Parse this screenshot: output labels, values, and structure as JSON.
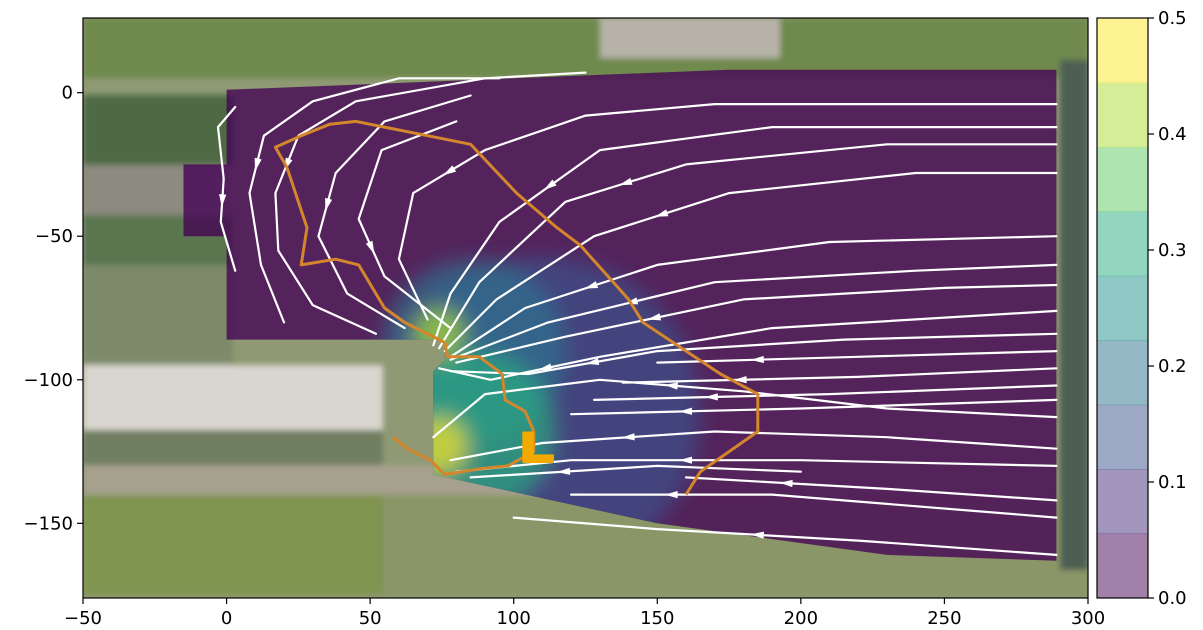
{
  "chart_data": {
    "type": "heatmap",
    "title": "",
    "xlabel": "",
    "ylabel": "",
    "xlim": [
      -50,
      300
    ],
    "ylim": [
      -176,
      26
    ],
    "x_ticks": [
      -50,
      0,
      50,
      100,
      150,
      200,
      250,
      300
    ],
    "y_ticks": [
      0,
      -50,
      -100,
      -150
    ],
    "colorbar": {
      "range": [
        0.0,
        0.5
      ],
      "ticks": [
        0.0,
        0.1,
        0.2,
        0.3,
        0.4,
        0.5
      ],
      "levels": 9,
      "colors": [
        "#440154",
        "#472d7b",
        "#3b528b",
        "#2c728e",
        "#21918c",
        "#28ae80",
        "#5ec962",
        "#addc30",
        "#fde725"
      ],
      "alpha": 0.5
    },
    "background": "aerial photograph of ship lock and water channel",
    "domain_polygon": [
      [
        0,
        1
      ],
      [
        175,
        8
      ],
      [
        289,
        8
      ],
      [
        289,
        -163
      ],
      [
        230,
        -161
      ],
      [
        150,
        -150
      ],
      [
        95,
        -138
      ],
      [
        72,
        -133
      ],
      [
        72,
        -97
      ],
      [
        76,
        -93
      ],
      [
        76,
        -86
      ],
      [
        0,
        -86
      ],
      [
        0,
        -50
      ],
      [
        -15,
        -50
      ],
      [
        -15,
        -25
      ],
      [
        0,
        -25
      ]
    ],
    "contour_field": {
      "description": "velocity magnitude (m/s) contours, elevated near lock-exit openings",
      "hotspots": [
        {
          "x": 74,
          "y": -123,
          "value": 0.45,
          "spread": 10
        },
        {
          "x": 74,
          "y": -84,
          "value": 0.42,
          "spread": 9
        },
        {
          "x": 86,
          "y": -118,
          "value": 0.28,
          "spread": 28
        },
        {
          "x": 86,
          "y": -90,
          "value": 0.22,
          "spread": 32
        },
        {
          "x": 110,
          "y": -112,
          "value": 0.15,
          "spread": 55
        }
      ]
    },
    "streamlines": [
      [
        [
          3,
          -62
        ],
        [
          -2,
          -45
        ],
        [
          -1,
          -30
        ],
        [
          -3,
          -12
        ],
        [
          3,
          -5
        ]
      ],
      [
        [
          20,
          -80
        ],
        [
          12,
          -60
        ],
        [
          8,
          -35
        ],
        [
          13,
          -15
        ],
        [
          30,
          -3
        ],
        [
          60,
          5
        ],
        [
          95,
          5
        ]
      ],
      [
        [
          52,
          -84
        ],
        [
          30,
          -74
        ],
        [
          18,
          -55
        ],
        [
          17,
          -35
        ],
        [
          25,
          -15
        ],
        [
          45,
          -3
        ],
        [
          90,
          5
        ],
        [
          125,
          7
        ]
      ],
      [
        [
          62,
          -82
        ],
        [
          42,
          -70
        ],
        [
          32,
          -50
        ],
        [
          38,
          -28
        ],
        [
          55,
          -10
        ],
        [
          85,
          -1
        ]
      ],
      [
        [
          78,
          -82
        ],
        [
          55,
          -64
        ],
        [
          46,
          -44
        ],
        [
          54,
          -20
        ],
        [
          80,
          -10
        ]
      ],
      [
        [
          70,
          -79
        ],
        [
          60,
          -58
        ],
        [
          65,
          -35
        ],
        [
          90,
          -20
        ],
        [
          125,
          -8
        ],
        [
          170,
          -4
        ],
        [
          289,
          -4
        ]
      ],
      [
        [
          72,
          -88
        ],
        [
          78,
          -70
        ],
        [
          95,
          -45
        ],
        [
          130,
          -20
        ],
        [
          190,
          -12
        ],
        [
          289,
          -12
        ]
      ],
      [
        [
          74,
          -89
        ],
        [
          88,
          -66
        ],
        [
          118,
          -38
        ],
        [
          160,
          -25
        ],
        [
          230,
          -18
        ],
        [
          289,
          -18
        ]
      ],
      [
        [
          76,
          -90
        ],
        [
          94,
          -72
        ],
        [
          128,
          -50
        ],
        [
          175,
          -35
        ],
        [
          240,
          -28
        ],
        [
          289,
          -28
        ]
      ],
      [
        [
          78,
          -92
        ],
        [
          104,
          -75
        ],
        [
          150,
          -60
        ],
        [
          210,
          -52
        ],
        [
          289,
          -50
        ]
      ],
      [
        [
          78,
          -93
        ],
        [
          112,
          -80
        ],
        [
          170,
          -66
        ],
        [
          240,
          -62
        ],
        [
          289,
          -60
        ]
      ],
      [
        [
          80,
          -94
        ],
        [
          118,
          -85
        ],
        [
          180,
          -72
        ],
        [
          250,
          -68
        ],
        [
          289,
          -67
        ]
      ],
      [
        [
          74,
          -96
        ],
        [
          92,
          -100
        ],
        [
          130,
          -92
        ],
        [
          190,
          -82
        ],
        [
          289,
          -76
        ]
      ],
      [
        [
          78,
          -97
        ],
        [
          105,
          -98
        ],
        [
          150,
          -90
        ],
        [
          215,
          -86
        ],
        [
          289,
          -84
        ]
      ],
      [
        [
          150,
          -94
        ],
        [
          220,
          -92
        ],
        [
          289,
          -90
        ]
      ],
      [
        [
          138,
          -101
        ],
        [
          220,
          -99
        ],
        [
          289,
          -96
        ]
      ],
      [
        [
          128,
          -107
        ],
        [
          210,
          -105
        ],
        [
          289,
          -102
        ]
      ],
      [
        [
          120,
          -112
        ],
        [
          200,
          -110
        ],
        [
          289,
          -107
        ]
      ],
      [
        [
          72,
          -120
        ],
        [
          90,
          -105
        ],
        [
          130,
          -100
        ],
        [
          180,
          -104
        ],
        [
          230,
          -110
        ],
        [
          289,
          -113
        ]
      ],
      [
        [
          78,
          -128
        ],
        [
          110,
          -122
        ],
        [
          170,
          -118
        ],
        [
          230,
          -120
        ],
        [
          289,
          -124
        ]
      ],
      [
        [
          80,
          -132
        ],
        [
          120,
          -128
        ],
        [
          200,
          -128
        ],
        [
          289,
          -130
        ]
      ],
      [
        [
          85,
          -134
        ],
        [
          150,
          -130
        ],
        [
          200,
          -132
        ]
      ],
      [
        [
          160,
          -134
        ],
        [
          230,
          -138
        ],
        [
          289,
          -142
        ]
      ],
      [
        [
          120,
          -140
        ],
        [
          190,
          -140
        ],
        [
          289,
          -148
        ]
      ],
      [
        [
          100,
          -148
        ],
        [
          150,
          -152
        ],
        [
          220,
          -156
        ],
        [
          289,
          -161
        ]
      ]
    ],
    "orange_path": [
      [
        160,
        -140
      ],
      [
        165,
        -132
      ],
      [
        185,
        -118
      ],
      [
        185,
        -105
      ],
      [
        172,
        -98
      ],
      [
        145,
        -80
      ],
      [
        140,
        -72
      ],
      [
        123,
        -53
      ],
      [
        115,
        -47
      ],
      [
        101,
        -35
      ],
      [
        85,
        -18
      ],
      [
        70,
        -15
      ],
      [
        45,
        -10
      ],
      [
        36,
        -11
      ],
      [
        26,
        -15
      ],
      [
        17,
        -19
      ],
      [
        21,
        -26
      ],
      [
        28,
        -47
      ],
      [
        26,
        -60
      ],
      [
        38,
        -58
      ],
      [
        46,
        -60
      ],
      [
        55,
        -75
      ],
      [
        62,
        -80
      ],
      [
        68,
        -83
      ],
      [
        76,
        -87
      ],
      [
        77,
        -92
      ],
      [
        88,
        -92
      ],
      [
        96,
        -98
      ],
      [
        97,
        -107
      ],
      [
        104,
        -111
      ],
      [
        107,
        -118
      ],
      [
        107,
        -125
      ],
      [
        98,
        -130
      ],
      [
        88,
        -131
      ],
      [
        76,
        -133
      ],
      [
        71,
        -128
      ],
      [
        63,
        -124
      ],
      [
        58,
        -120
      ]
    ],
    "ship_marker": [
      [
        103,
        -118
      ],
      [
        107,
        -118
      ],
      [
        107,
        -126
      ],
      [
        114,
        -126
      ],
      [
        114,
        -129
      ],
      [
        103,
        -129
      ]
    ]
  }
}
